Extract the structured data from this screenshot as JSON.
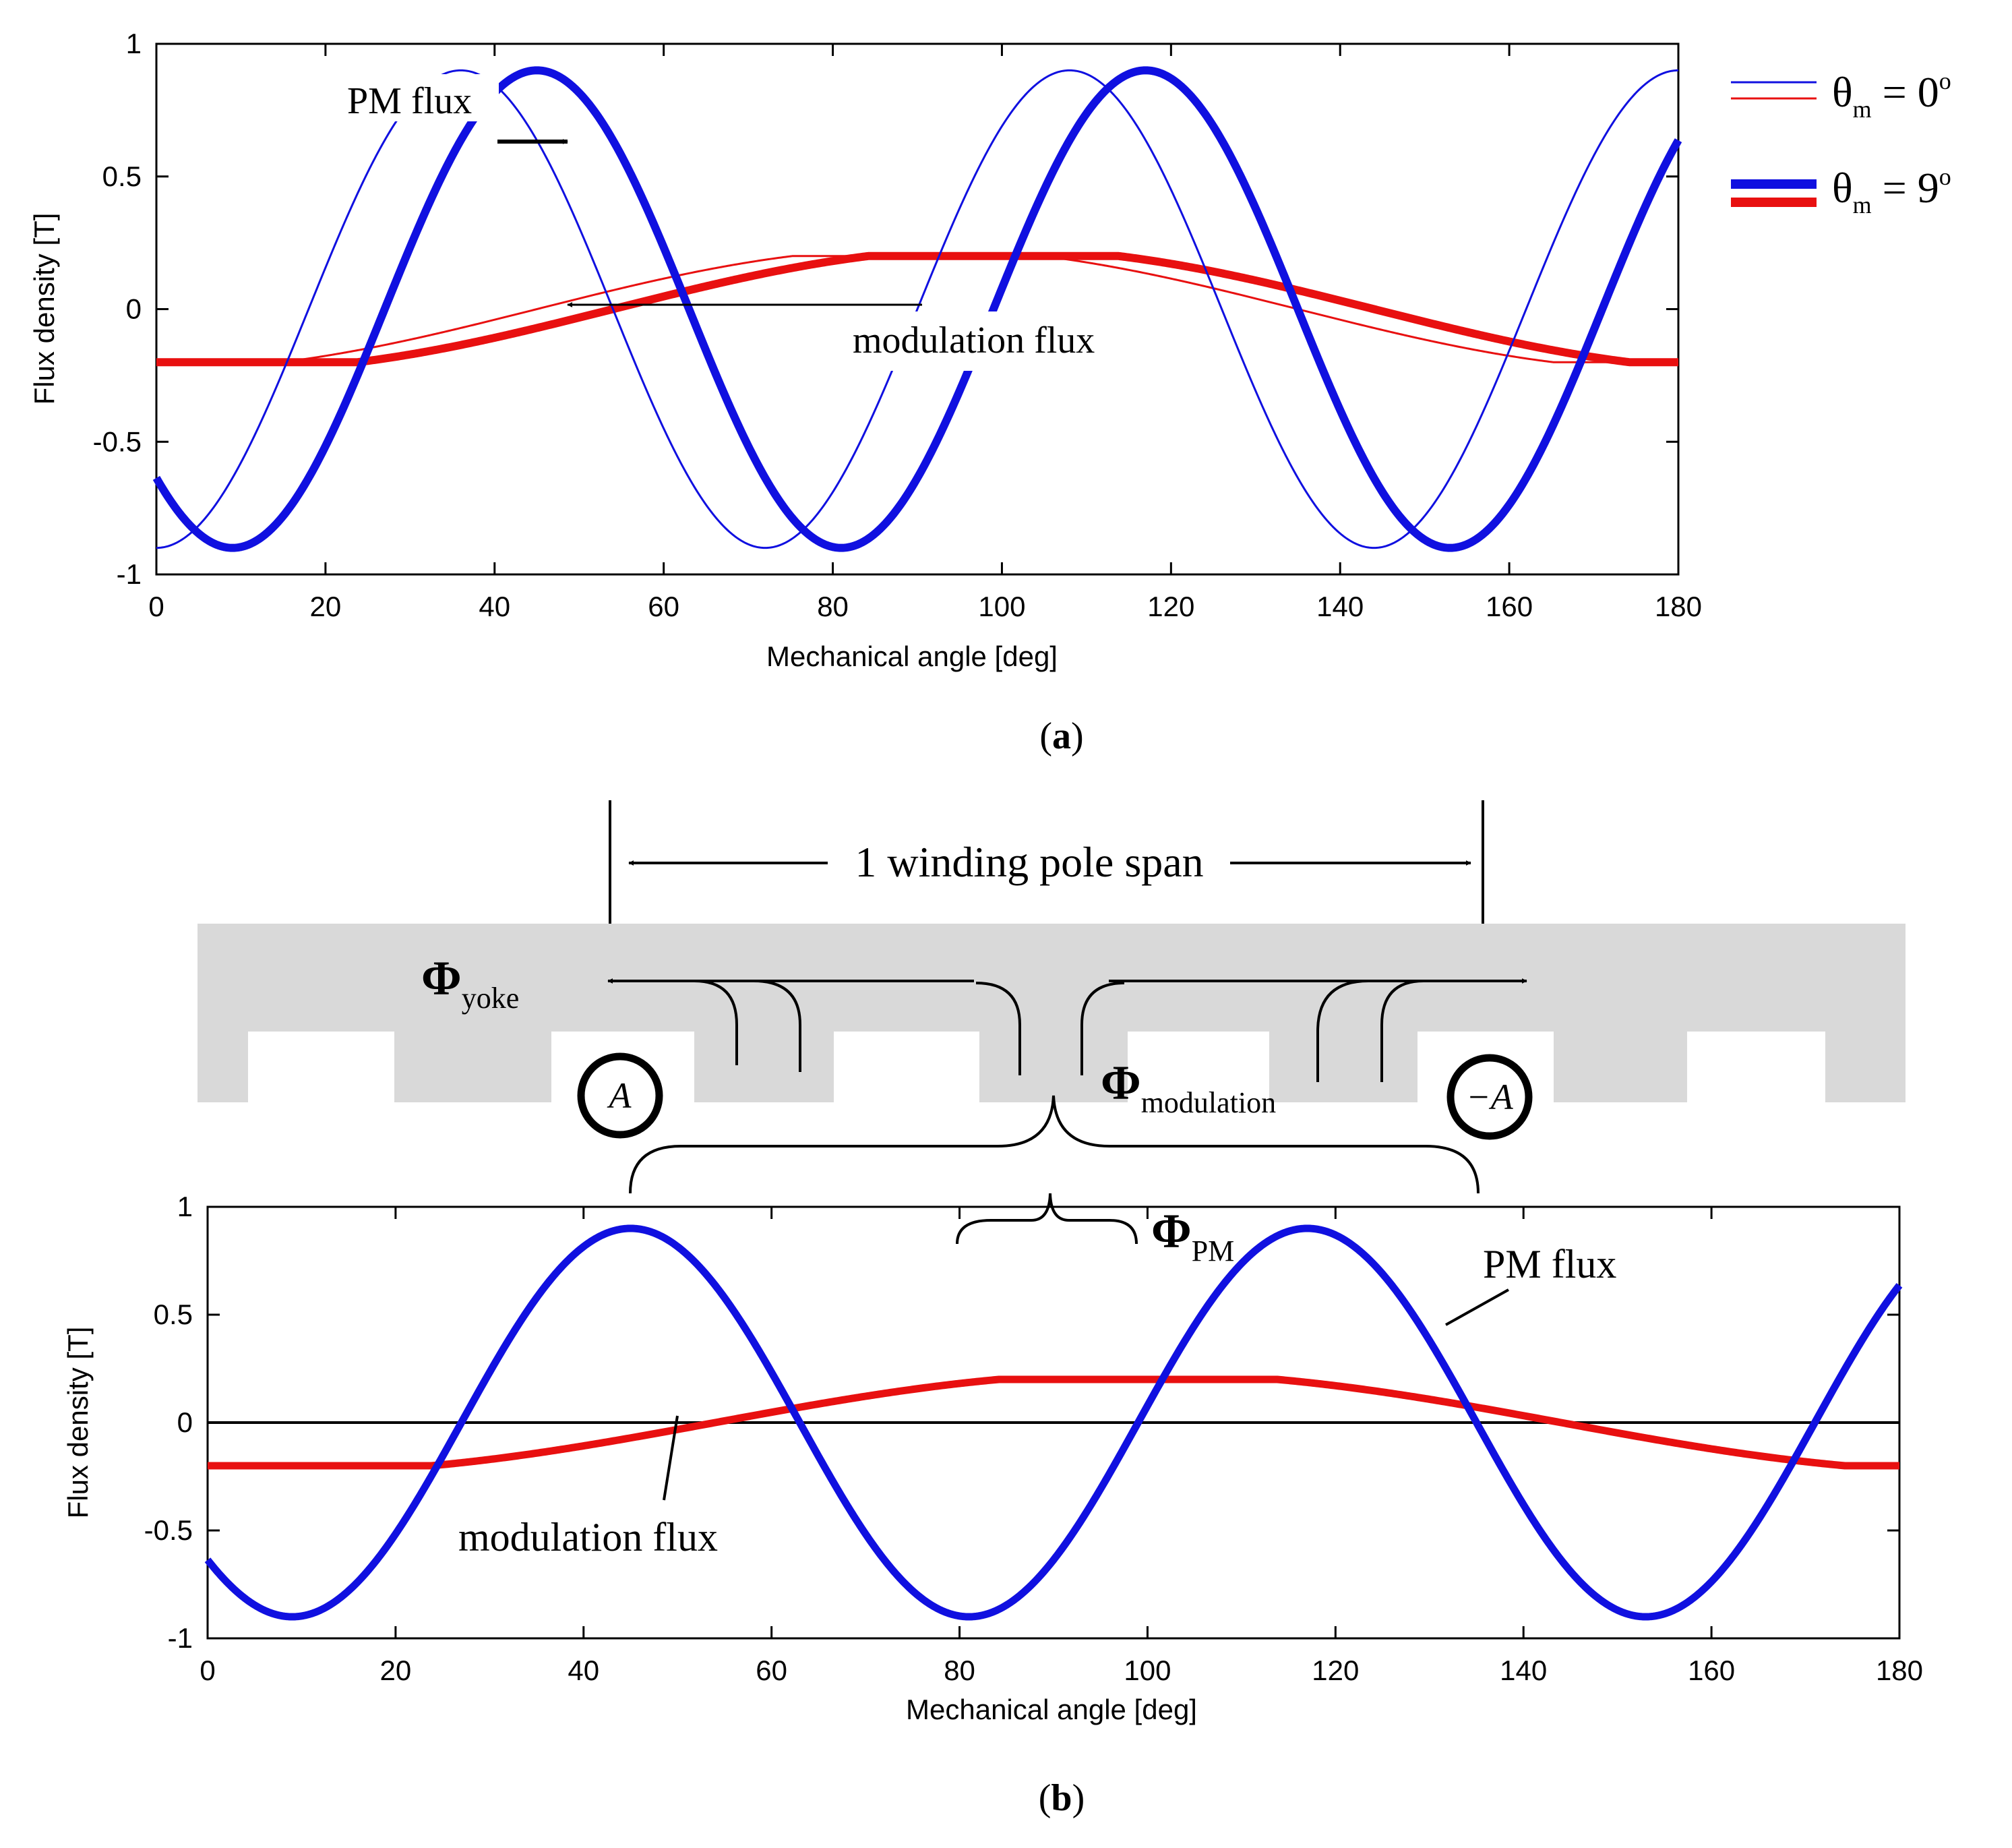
{
  "chart_data": [
    {
      "type": "line",
      "panel_label": "(a)",
      "panel_letter": "a",
      "xlabel": "Mechanical angle [deg]",
      "ylabel": "Flux density [T]",
      "xlim": [
        0,
        180
      ],
      "ylim": [
        -1,
        1
      ],
      "xticks": [
        "0",
        "20",
        "40",
        "60",
        "80",
        "100",
        "120",
        "140",
        "160",
        "180"
      ],
      "yticks": [
        "1",
        "0.5",
        "0",
        "-0.5",
        "-1"
      ],
      "grid": false,
      "legend": {
        "position": "outside-right",
        "entries": [
          {
            "symbol": "θ",
            "sub": "m",
            "rest": " = 0",
            "sup": "o",
            "style": "thin"
          },
          {
            "symbol": "θ",
            "sub": "m",
            "rest": " = 9",
            "sup": "o",
            "style": "thick"
          }
        ]
      },
      "series": [
        {
          "name": "PM flux, θm = 0°",
          "color": "#1010e0",
          "kind": "pm",
          "amplitude": 0.9,
          "harmonic": 5,
          "phase_deg": 0,
          "weight": "thin"
        },
        {
          "name": "modulation flux, θm = 0°",
          "color": "#e81010",
          "kind": "mod",
          "amplitude": 0.2,
          "phase_deg": 0,
          "weight": "thin"
        },
        {
          "name": "PM flux, θm = 9°",
          "color": "#1010e0",
          "kind": "pm",
          "amplitude": 0.9,
          "harmonic": 5,
          "phase_deg": 9,
          "weight": "thick"
        },
        {
          "name": "modulation flux, θm = 9°",
          "color": "#e81010",
          "kind": "mod",
          "amplitude": 0.2,
          "phase_deg": 9,
          "weight": "thick"
        }
      ],
      "annotations": [
        {
          "text": "PM flux",
          "target_x": 49,
          "target_y": 0.62
        },
        {
          "text": "modulation flux",
          "target_x": 48,
          "target_y": 0.0
        }
      ]
    },
    {
      "type": "line",
      "panel_label": "(b)",
      "panel_letter": "b",
      "xlabel": "Mechanical angle [deg]",
      "ylabel": "Flux density [T]",
      "xlim": [
        0,
        180
      ],
      "ylim": [
        -1,
        1
      ],
      "xticks": [
        "0",
        "20",
        "40",
        "60",
        "80",
        "100",
        "120",
        "140",
        "160",
        "180"
      ],
      "yticks": [
        "1",
        "0.5",
        "0",
        "-0.5",
        "-1"
      ],
      "grid": false,
      "zero_line": true,
      "series": [
        {
          "name": "PM flux",
          "color": "#1010e0",
          "kind": "pm",
          "amplitude": 0.9,
          "harmonic": 5,
          "phase_deg": 9,
          "weight": "thick"
        },
        {
          "name": "modulation flux",
          "color": "#e81010",
          "kind": "mod",
          "amplitude": 0.2,
          "phase_deg": 9,
          "weight": "thick"
        }
      ],
      "annotations": [
        {
          "text": "PM flux",
          "target_x": 132,
          "target_y": 0.55
        },
        {
          "text": "modulation flux",
          "target_x": 50,
          "target_y": 0.04
        }
      ]
    }
  ],
  "diagram": {
    "span_label": "1 winding pole span",
    "phi_symbol": "Φ",
    "phi_yoke_sub": "yoke",
    "phi_modulation_sub": "modulation",
    "phi_pm_sub": "PM",
    "coil_a_label": "A",
    "coil_minus_a_label": "−A",
    "colors": {
      "core": "#d9d9d9",
      "pm": "#1010e0",
      "mod": "#e81010"
    }
  }
}
